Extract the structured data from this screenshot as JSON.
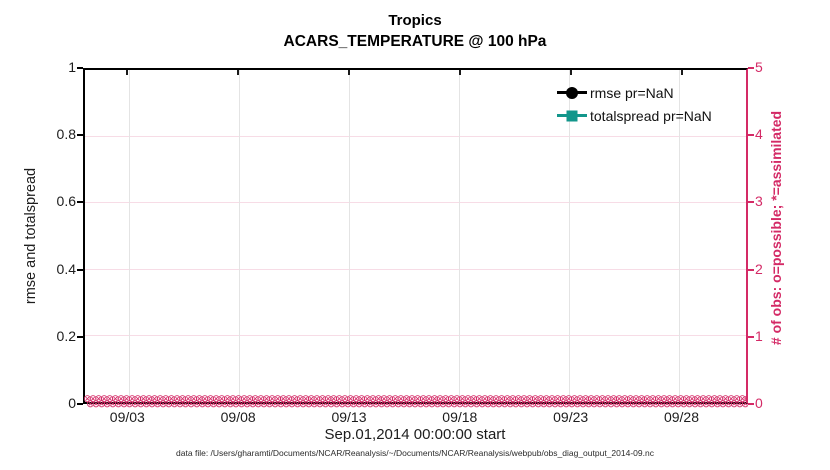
{
  "title": "Tropics",
  "subtitle": "ACARS_TEMPERATURE @ 100 hPa",
  "xlabel": "Sep.01,2014 00:00:00 start",
  "ylabel_left": "rmse and totalspread",
  "ylabel_right": "# of obs: o=possible; *=assimilated",
  "annotation": "data file: /Users/gharamti/Documents/NCAR/Reanalysis/~/Documents/NCAR/Reanalysis/webpub/obs_diag_output_2014-09.nc",
  "colors": {
    "accent_pink": "#D42A66",
    "grid_pink": "#F7DCE6",
    "grid_gray": "#E4E4E4",
    "teal": "#12968B",
    "spine_black": "#000000",
    "text": "#1d1d1d"
  },
  "axes": {
    "left": {
      "tick_labels": [
        "0",
        "0.2",
        "0.4",
        "0.6",
        "0.8",
        "1"
      ]
    },
    "right": {
      "tick_labels": [
        "0",
        "1",
        "2",
        "3",
        "4",
        "5"
      ]
    },
    "x": {
      "tick_labels": [
        "09/03",
        "09/08",
        "09/13",
        "09/18",
        "09/23",
        "09/28"
      ],
      "tick_day_offsets": [
        2,
        7,
        12,
        17,
        22,
        27
      ],
      "span_days": 30
    }
  },
  "legend": {
    "items": [
      {
        "label": "rmse pr=NaN",
        "color": "#000000",
        "marker": "circle"
      },
      {
        "label": "totalspread pr=NaN",
        "color": "#12968B",
        "marker": "square"
      }
    ]
  },
  "obs_band": {
    "glyph": "⊗",
    "color": "#D42A66",
    "description": "dense overlapping o (possible) and * (assimilated) markers at zero along the entire x-axis"
  },
  "chart_data": {
    "type": "line",
    "title": "Tropics",
    "subtitle": "ACARS_TEMPERATURE @ 100 hPa",
    "xlabel": "Sep.01,2014 00:00:00 start",
    "ylabel": "rmse and totalspread",
    "y2label": "# of obs: o=possible; *=assimilated",
    "x_range": [
      "2014-09-01 00:00:00",
      "2014-10-01 00:00:00"
    ],
    "x_tick_labels": [
      "09/03",
      "09/08",
      "09/13",
      "09/18",
      "09/23",
      "09/28"
    ],
    "ylim": [
      0,
      1
    ],
    "y_ticks": [
      0,
      0.2,
      0.4,
      0.6,
      0.8,
      1
    ],
    "y2lim": [
      0,
      5
    ],
    "y2_ticks": [
      0,
      1,
      2,
      3,
      4,
      5
    ],
    "grid": true,
    "legend_position": "top-right-inside-no-box",
    "series": [
      {
        "name": "rmse pr=NaN",
        "axis": "left",
        "color": "#000000",
        "marker": "filled-circle",
        "values": "NaN at every time step (no curve drawn)"
      },
      {
        "name": "totalspread pr=NaN",
        "axis": "left",
        "color": "#12968B",
        "marker": "filled-square",
        "values": "NaN at every time step (no curve drawn)"
      },
      {
        "name": "observations possible (o)",
        "axis": "right",
        "color": "#D42A66",
        "marker": "o",
        "values": "0 at every time step Sep 1 - Oct 1 2014"
      },
      {
        "name": "observations assimilated (*)",
        "axis": "right",
        "color": "#D42A66",
        "marker": "*",
        "values": "0 at every time step Sep 1 - Oct 1 2014"
      }
    ]
  }
}
